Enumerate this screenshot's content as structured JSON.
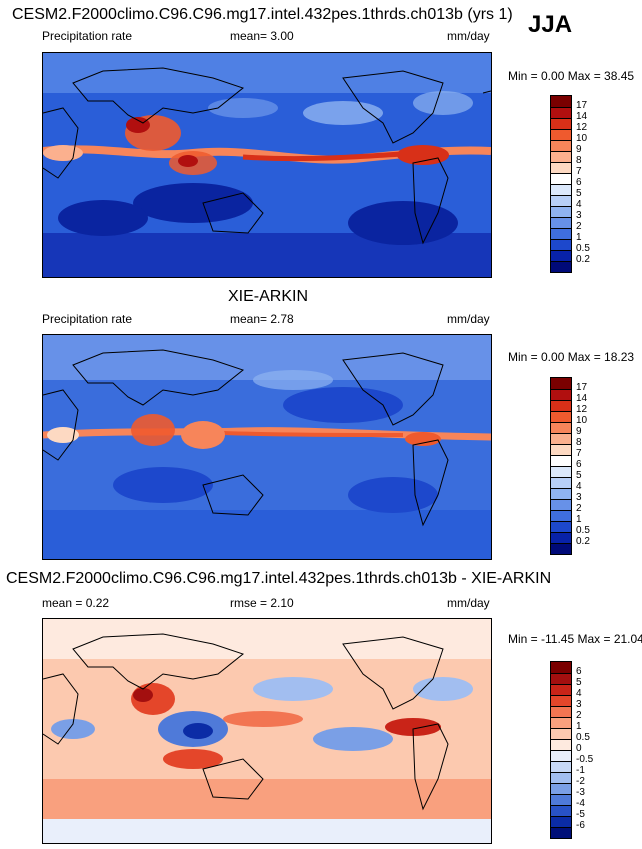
{
  "season": "JJA",
  "panels": [
    {
      "title": "CESM2.F2000climo.C96.C96.mg17.intel.432pes.1thrds.ch013b (yrs 1)",
      "left_label": "Precipitation rate",
      "mean_text": "mean=   3.00",
      "units": "mm/day",
      "minmax_text": "Min =   0.00 Max =  38.45"
    },
    {
      "title": "XIE-ARKIN",
      "left_label": "Precipitation rate",
      "mean_text": "mean=   2.78",
      "units": "mm/day",
      "minmax_text": "Min =   0.00 Max =  18.23"
    },
    {
      "title": "CESM2.F2000climo.C96.C96.mg17.intel.432pes.1thrds.ch013b - XIE-ARKIN",
      "left_label": "mean =   0.22",
      "mean_text": "rmse =   2.10",
      "units": "mm/day",
      "minmax_text": "Min = -11.45 Max =  21.04"
    }
  ],
  "chart_data": [
    {
      "type": "heatmap",
      "title": "CESM2.F2000climo.C96.C96.mg17.intel.432pes.1thrds.ch013b (yrs 1)",
      "field": "Precipitation rate",
      "units": "mm/day",
      "mean": 3.0,
      "min": 0.0,
      "max": 38.45,
      "colorbar_levels": [
        "17",
        "14",
        "12",
        "10",
        "9",
        "8",
        "7",
        "6",
        "5",
        "4",
        "3",
        "2",
        "1",
        "0.5",
        "0.2"
      ],
      "colorbar_colors": [
        "#7a0000",
        "#b10f0f",
        "#d83018",
        "#ef5a2e",
        "#f7855a",
        "#fbb08e",
        "#fdd9c2",
        "#ffffff",
        "#dbe8fb",
        "#b7cff7",
        "#8fb3f1",
        "#6791e8",
        "#3f6ede",
        "#1d48cc",
        "#0822a8",
        "#000a78"
      ]
    },
    {
      "type": "heatmap",
      "title": "XIE-ARKIN",
      "field": "Precipitation rate",
      "units": "mm/day",
      "mean": 2.78,
      "min": 0.0,
      "max": 18.23,
      "colorbar_levels": [
        "17",
        "14",
        "12",
        "10",
        "9",
        "8",
        "7",
        "6",
        "5",
        "4",
        "3",
        "2",
        "1",
        "0.5",
        "0.2"
      ],
      "colorbar_colors": [
        "#7a0000",
        "#b10f0f",
        "#d83018",
        "#ef5a2e",
        "#f7855a",
        "#fbb08e",
        "#fdd9c2",
        "#ffffff",
        "#dbe8fb",
        "#b7cff7",
        "#8fb3f1",
        "#6791e8",
        "#3f6ede",
        "#1d48cc",
        "#0822a8",
        "#000a78"
      ]
    },
    {
      "type": "heatmap",
      "title": "CESM2.F2000climo.C96.C96.mg17.intel.432pes.1thrds.ch013b - XIE-ARKIN",
      "units": "mm/day",
      "mean": 0.22,
      "rmse": 2.1,
      "min": -11.45,
      "max": 21.04,
      "colorbar_levels": [
        "6",
        "5",
        "4",
        "3",
        "2",
        "1",
        "0.5",
        "0",
        "-0.5",
        "-1",
        "-2",
        "-3",
        "-4",
        "-5",
        "-6"
      ],
      "colorbar_colors": [
        "#7a0000",
        "#a30f0f",
        "#c92418",
        "#e4462a",
        "#f27552",
        "#f9a07e",
        "#fcc9af",
        "#feeadf",
        "#e9effb",
        "#c7d8f6",
        "#a2bef0",
        "#7a9fe6",
        "#4f7ad9",
        "#2852c6",
        "#0b2ca6",
        "#000f78"
      ]
    }
  ]
}
